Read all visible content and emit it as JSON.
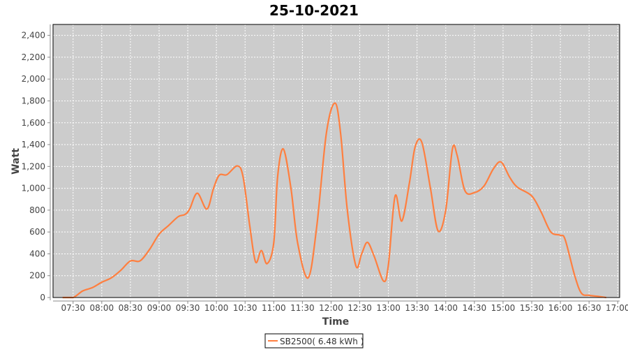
{
  "chart_data": {
    "type": "line",
    "title": "25-10-2021",
    "xlabel": "Time",
    "ylabel": "Watt",
    "xlim": [
      "07:09",
      "17:02"
    ],
    "ylim": [
      0,
      2500
    ],
    "x_ticks": [
      "07:30",
      "08:00",
      "08:30",
      "09:00",
      "09:30",
      "10:00",
      "10:30",
      "11:00",
      "11:30",
      "12:00",
      "12:30",
      "13:00",
      "13:30",
      "14:00",
      "14:30",
      "15:00",
      "15:30",
      "16:00",
      "16:30",
      "17:00"
    ],
    "y_ticks": [
      "0",
      "200",
      "400",
      "600",
      "800",
      "1,000",
      "1,200",
      "1,400",
      "1,600",
      "1,800",
      "2,000",
      "2,200",
      "2,400"
    ],
    "grid": true,
    "legend_position": "bottom",
    "series": [
      {
        "name": "SB2500( 6.48 kWh )",
        "color": "#ff7f3f",
        "points": [
          [
            "07:19",
            0
          ],
          [
            "07:30",
            0
          ],
          [
            "07:40",
            60
          ],
          [
            "07:50",
            90
          ],
          [
            "08:00",
            140
          ],
          [
            "08:10",
            180
          ],
          [
            "08:20",
            250
          ],
          [
            "08:30",
            335
          ],
          [
            "08:40",
            335
          ],
          [
            "08:50",
            440
          ],
          [
            "09:00",
            580
          ],
          [
            "09:10",
            660
          ],
          [
            "09:20",
            740
          ],
          [
            "09:27",
            760
          ],
          [
            "09:32",
            810
          ],
          [
            "09:40",
            955
          ],
          [
            "09:50",
            810
          ],
          [
            "09:57",
            1000
          ],
          [
            "10:03",
            1120
          ],
          [
            "10:11",
            1125
          ],
          [
            "10:22",
            1205
          ],
          [
            "10:28",
            1100
          ],
          [
            "10:35",
            650
          ],
          [
            "10:41",
            325
          ],
          [
            "10:47",
            430
          ],
          [
            "10:53",
            310
          ],
          [
            "11:00",
            500
          ],
          [
            "11:04",
            1100
          ],
          [
            "11:10",
            1360
          ],
          [
            "11:18",
            1000
          ],
          [
            "11:25",
            500
          ],
          [
            "11:36",
            180
          ],
          [
            "11:45",
            650
          ],
          [
            "11:55",
            1500
          ],
          [
            "12:04",
            1780
          ],
          [
            "12:10",
            1500
          ],
          [
            "12:17",
            800
          ],
          [
            "12:26",
            290
          ],
          [
            "12:32",
            400
          ],
          [
            "12:38",
            505
          ],
          [
            "12:45",
            380
          ],
          [
            "12:55",
            150
          ],
          [
            "13:00",
            300
          ],
          [
            "13:07",
            930
          ],
          [
            "13:14",
            700
          ],
          [
            "13:22",
            1050
          ],
          [
            "13:28",
            1380
          ],
          [
            "13:35",
            1420
          ],
          [
            "13:44",
            1000
          ],
          [
            "13:52",
            610
          ],
          [
            "14:00",
            800
          ],
          [
            "14:07",
            1360
          ],
          [
            "14:12",
            1300
          ],
          [
            "14:20",
            980
          ],
          [
            "14:30",
            960
          ],
          [
            "14:40",
            1020
          ],
          [
            "14:50",
            1180
          ],
          [
            "14:58",
            1240
          ],
          [
            "15:07",
            1100
          ],
          [
            "15:15",
            1010
          ],
          [
            "15:30",
            930
          ],
          [
            "15:40",
            780
          ],
          [
            "15:50",
            600
          ],
          [
            "16:00",
            570
          ],
          [
            "16:05",
            530
          ],
          [
            "16:15",
            200
          ],
          [
            "16:22",
            40
          ],
          [
            "16:30",
            20
          ],
          [
            "16:40",
            10
          ],
          [
            "16:48",
            0
          ]
        ]
      }
    ]
  }
}
